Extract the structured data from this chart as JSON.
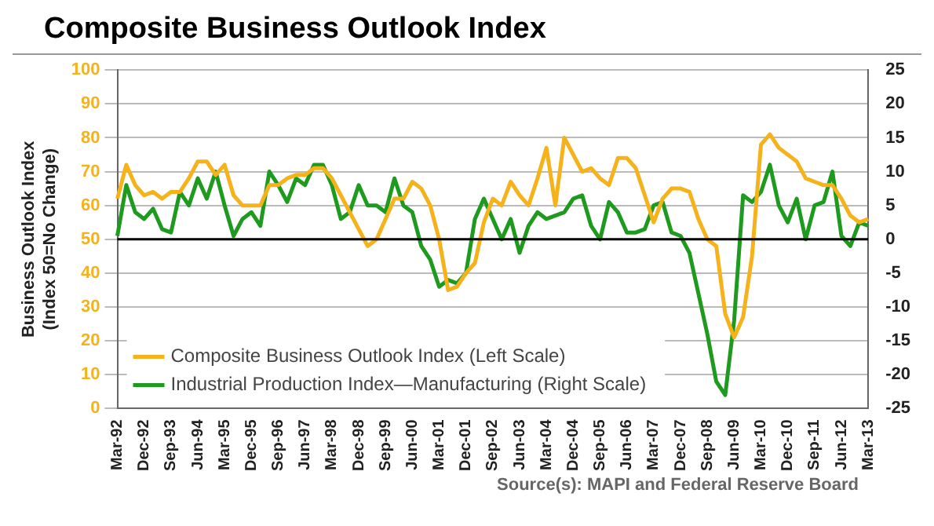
{
  "chart_data": {
    "type": "line",
    "title": "Composite Business Outlook Index",
    "ylabel": "Business Outlook Index\n(Index 50=No Change)",
    "categories": [
      "Mar-92",
      null,
      null,
      "Dec-92",
      null,
      null,
      "Sep-93",
      null,
      null,
      "Jun-94",
      null,
      null,
      "Mar-95",
      null,
      null,
      "Dec-95",
      null,
      null,
      "Sep-96",
      null,
      null,
      "Jun-97",
      null,
      null,
      "Mar-98",
      null,
      null,
      "Dec-98",
      null,
      null,
      "Sep-99",
      null,
      null,
      "Jun-00",
      null,
      null,
      "Mar-01",
      null,
      null,
      "Dec-01",
      null,
      null,
      "Sep-02",
      null,
      null,
      "Jun-03",
      null,
      null,
      "Mar-04",
      null,
      null,
      "Dec-04",
      null,
      null,
      "Sep-05",
      null,
      null,
      "Jun-06",
      null,
      null,
      "Mar-07",
      null,
      null,
      "Dec-07",
      null,
      null,
      "Sep-08",
      null,
      null,
      "Jun-09",
      null,
      null,
      "Mar-10",
      null,
      null,
      "Dec-10",
      null,
      null,
      "Sep-11",
      null,
      null,
      "Jun-12",
      null,
      null,
      "Mar-13"
    ],
    "series": [
      {
        "name": "Composite Business Outlook Index (Left Scale)",
        "color": "#f5b21b",
        "values": [
          62,
          72,
          66,
          63,
          64,
          62,
          64,
          64,
          68,
          73,
          73,
          69,
          72,
          63,
          60,
          60,
          60,
          66,
          66,
          68,
          69,
          69,
          71,
          71,
          68,
          63,
          58,
          53,
          48,
          50,
          56,
          62,
          62,
          67,
          65,
          60,
          50,
          35,
          36,
          40,
          43,
          55,
          62,
          60,
          67,
          63,
          60,
          68,
          77,
          60,
          80,
          75,
          70,
          71,
          68,
          66,
          74,
          74,
          71,
          63,
          55,
          62,
          65,
          65,
          64,
          56,
          50,
          48,
          28,
          21,
          27,
          45,
          78,
          81,
          77,
          75,
          73,
          68,
          67,
          66,
          66,
          62,
          57,
          55,
          56
        ]
      },
      {
        "name": "Industrial Production Index—Manufacturing (Right Scale)",
        "color": "#1e9a1e",
        "axis": "y2",
        "values": [
          0.5,
          8,
          4,
          3,
          4.5,
          1.5,
          1,
          7,
          5,
          9,
          6,
          10,
          5,
          0.5,
          3,
          4,
          2,
          10,
          8,
          5.5,
          9,
          8,
          11,
          11,
          8,
          3,
          4,
          8,
          5,
          5,
          4,
          9,
          5,
          4,
          -1,
          -3,
          -7,
          -6,
          -6.5,
          -5,
          3,
          6,
          3,
          0,
          3,
          -2,
          2,
          4,
          3,
          3.5,
          4,
          6,
          6.5,
          2,
          0,
          5.5,
          4,
          1,
          1,
          1.5,
          5,
          5.5,
          1,
          0.5,
          -2,
          -8,
          -14,
          -21,
          -23,
          -12,
          6.5,
          5.5,
          7,
          11,
          5,
          2.5,
          6,
          0,
          5,
          5.5,
          10,
          0.5,
          -1,
          2.5,
          2
        ]
      }
    ],
    "ylim": [
      0,
      100
    ],
    "yticks": [
      0,
      10,
      20,
      30,
      40,
      50,
      60,
      70,
      80,
      90,
      100
    ],
    "y2lim": [
      -25,
      25
    ],
    "y2ticks": [
      -25,
      -20,
      -15,
      -10,
      -5,
      0,
      5,
      10,
      15,
      20,
      25
    ],
    "ref_lines": [
      {
        "axis": "y",
        "value": 50,
        "color": "#000000"
      }
    ],
    "grid": "y",
    "legend": "bottom left",
    "marker": "none",
    "line_style": "solid",
    "annotations": [
      "Source(s): MAPI and Federal Reserve Board"
    ]
  }
}
